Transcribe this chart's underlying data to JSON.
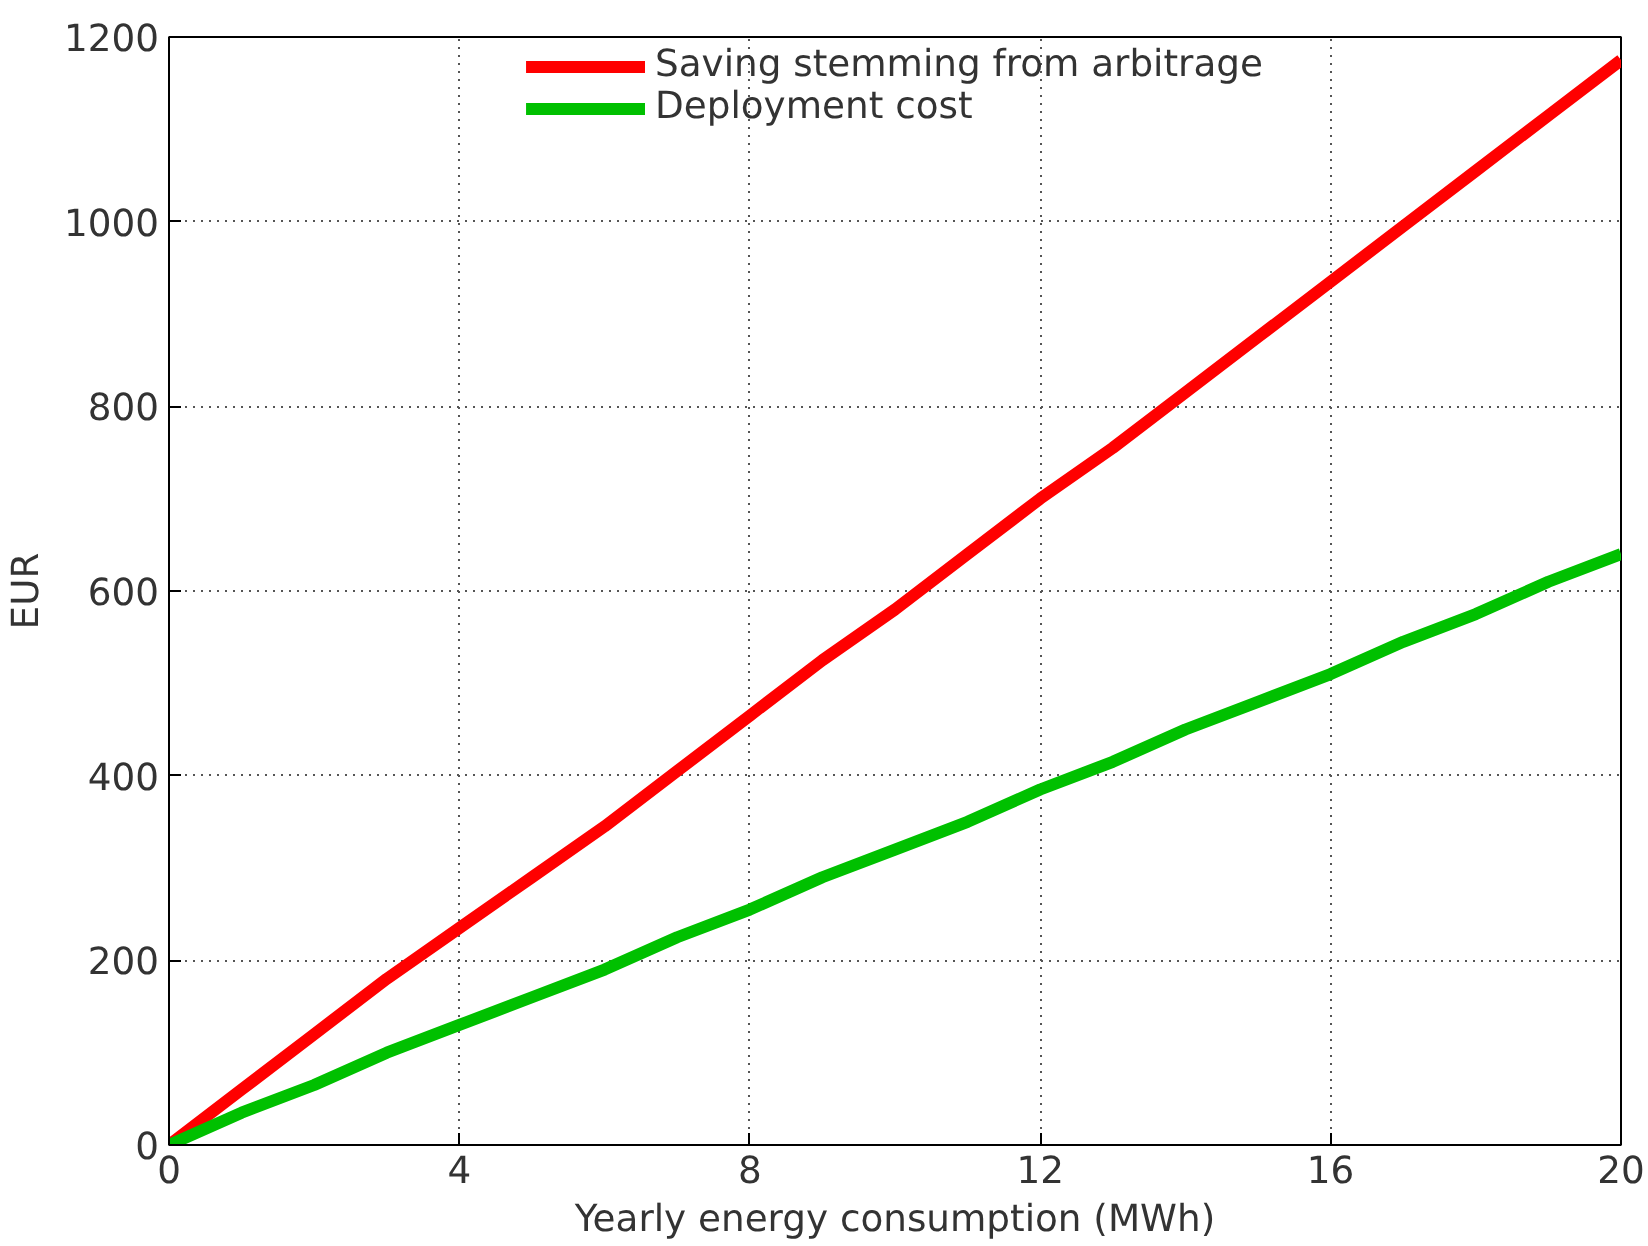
{
  "chart_data": {
    "type": "line",
    "xlabel": "Yearly energy consumption (MWh)",
    "ylabel": "EUR",
    "x": [
      0,
      1,
      2,
      3,
      4,
      5,
      6,
      7,
      8,
      9,
      10,
      11,
      12,
      13,
      14,
      15,
      16,
      17,
      18,
      19,
      20
    ],
    "series": [
      {
        "name": "Saving stemming from arbitrage",
        "color": "#ff0000",
        "values": [
          0,
          60,
          120,
          180,
          235,
          290,
          345,
          405,
          465,
          525,
          580,
          640,
          700,
          755,
          815,
          875,
          935,
          995,
          1055,
          1115,
          1175
        ]
      },
      {
        "name": "Deployment cost",
        "color": "#00c000",
        "values": [
          0,
          35,
          65,
          100,
          130,
          160,
          190,
          225,
          255,
          290,
          320,
          350,
          385,
          415,
          450,
          480,
          510,
          545,
          575,
          610,
          640
        ]
      }
    ],
    "xlim": [
      0,
      20
    ],
    "ylim": [
      0,
      1200
    ],
    "xticks": [
      0,
      4,
      8,
      12,
      16,
      20
    ],
    "yticks": [
      0,
      200,
      400,
      600,
      800,
      1000,
      1200
    ],
    "grid": true,
    "legend": "top",
    "marker": "none",
    "line_style": "solid"
  }
}
